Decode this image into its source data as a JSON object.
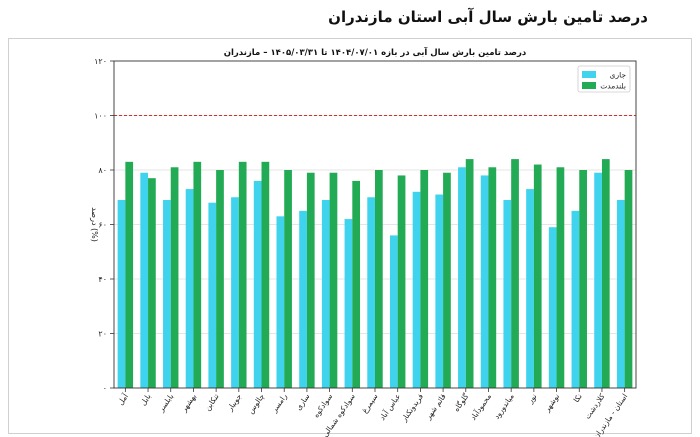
{
  "page": {
    "title": "درصد تامین بارش سال آبی استان مازندران"
  },
  "chart_data": {
    "type": "bar",
    "title": "درصد تامین بارش سال آبی در بازه ۱۴۰۴/۰۷/۰۱ تا ۱۴۰۵/۰۳/۳۱ – مازندران",
    "xlabel": "",
    "ylabel": "درصد (%)",
    "ylim": [
      0,
      120
    ],
    "yticks": [
      0,
      20,
      40,
      60,
      80,
      100,
      120
    ],
    "ytick_labels": [
      "۰",
      "۲۰",
      "۴۰",
      "۶۰",
      "۸۰",
      "۱۰۰",
      "۱۲۰"
    ],
    "reference_line": 100,
    "grid": true,
    "legend_position": "top-right",
    "categories": [
      "آمل",
      "بابل",
      "بابلسر",
      "بهشهر",
      "تنکابن",
      "جویبار",
      "چالوس",
      "رامسر",
      "ساری",
      "سوادکوه",
      "سوادکوه شمالی",
      "سیمرغ",
      "عباس آباد",
      "فریدونکنار",
      "قائم شهر",
      "گلوگاه",
      "محمودآباد",
      "میاندورود",
      "نور",
      "نوشهر",
      "نکا",
      "کلاردشت",
      "استان - مازندران"
    ],
    "series": [
      {
        "name": "جاری",
        "color": "#3fd3ee",
        "values": [
          69,
          79,
          69,
          73,
          68,
          70,
          76,
          63,
          65,
          69,
          62,
          70,
          56,
          72,
          71,
          81,
          78,
          69,
          73,
          59,
          65,
          79,
          69
        ]
      },
      {
        "name": "بلندمدت",
        "color": "#22aa55",
        "values": [
          83,
          77,
          81,
          83,
          80,
          83,
          83,
          80,
          79,
          79,
          76,
          80,
          78,
          80,
          79,
          84,
          81,
          84,
          82,
          81,
          80,
          84,
          80
        ]
      }
    ]
  }
}
